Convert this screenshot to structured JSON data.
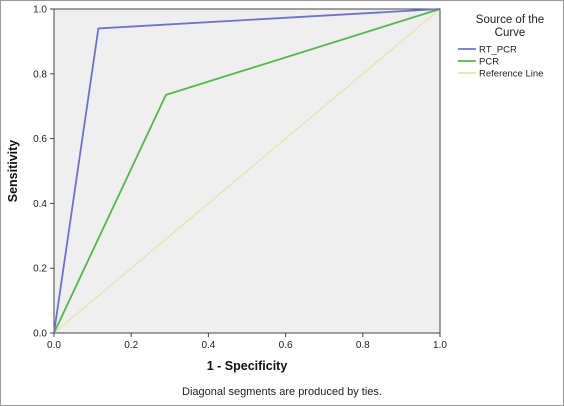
{
  "chart_data": {
    "type": "line",
    "xlabel": "1 - Specificity",
    "ylabel": "Sensitivity",
    "xlim": [
      0,
      1
    ],
    "ylim": [
      0,
      1
    ],
    "x_ticks": [
      "0.0",
      "0.2",
      "0.4",
      "0.6",
      "0.8",
      "1.0"
    ],
    "y_ticks": [
      "0.0",
      "0.2",
      "0.4",
      "0.6",
      "0.8",
      "1.0"
    ],
    "grid": false,
    "legend": {
      "title_line1": "Source of the",
      "title_line2": "Curve",
      "placement": "right"
    },
    "series": [
      {
        "name": "RT_PCR",
        "color": "#6b74c6",
        "points": [
          [
            0,
            0
          ],
          [
            0.115,
            0.94
          ],
          [
            1,
            1
          ]
        ]
      },
      {
        "name": "PCR",
        "color": "#52b84a",
        "points": [
          [
            0,
            0
          ],
          [
            0.29,
            0.735
          ],
          [
            1,
            1
          ]
        ]
      },
      {
        "name": "Reference Line",
        "color": "#e4e4a8",
        "points": [
          [
            0,
            0
          ],
          [
            1,
            1
          ]
        ]
      }
    ],
    "footnote": "Diagonal segments are produced by ties."
  }
}
